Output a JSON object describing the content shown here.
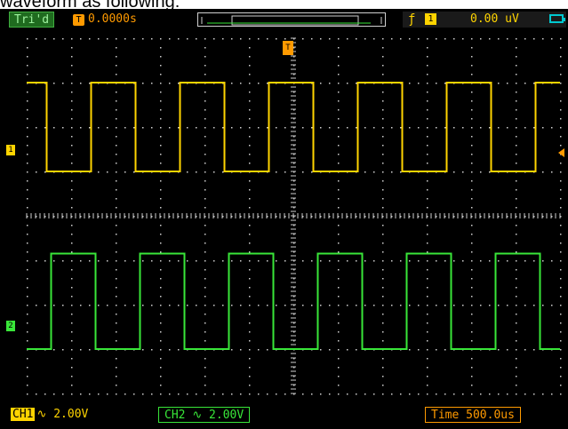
{
  "caption": "waveform as following:",
  "topbar": {
    "trigger_status": "Tri'd",
    "trigger_position": "0.0000s",
    "trigger_position_icon": "T-arrow-icon",
    "trigger_edge_icon": "rising-edge-icon",
    "trigger_source": "1",
    "trigger_level": "0.00 uV",
    "battery_icon": "battery-icon"
  },
  "markers": {
    "ch1": "1",
    "ch2": "2",
    "trigger": "T"
  },
  "bottombar": {
    "ch1_tag": "CH1",
    "ch1_coupling_icon": "ac-coupling-icon",
    "ch1_scale": "2.00V",
    "ch2_label": "CH2",
    "ch2_scale": "2.00V",
    "timebase": "Time 500.0us"
  },
  "colors": {
    "ch1": "#ffd400",
    "ch2": "#39e639",
    "trigger": "#ff9a00",
    "grid": "#cfcfcf",
    "background": "#000000"
  },
  "waveforms": {
    "ch1": {
      "type": "square",
      "high_div": 3.0,
      "low_div": 1.0,
      "period_div": 2.0,
      "first_fall_div": 0.45
    },
    "ch2": {
      "type": "square",
      "high_div": -0.85,
      "low_div": -3.0,
      "period_div": 2.0,
      "first_rise_div": 0.55
    }
  }
}
